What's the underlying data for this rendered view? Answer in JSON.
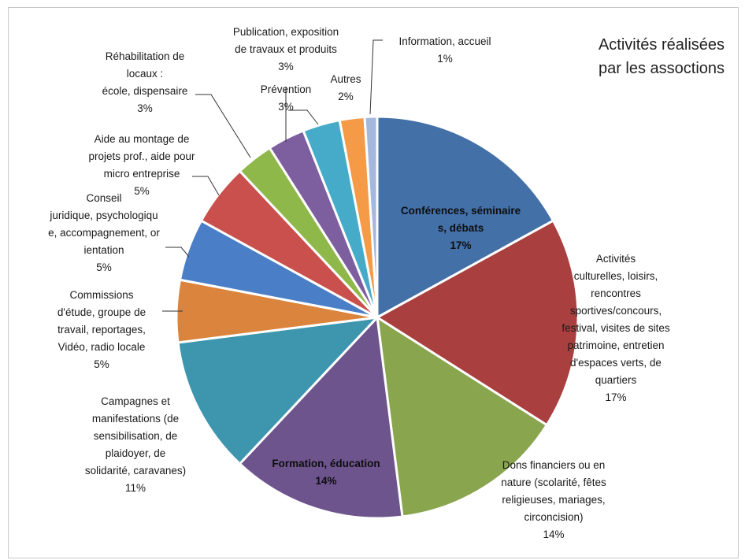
{
  "chart_data": {
    "type": "pie",
    "title": "Activités réalisées par les assoctions",
    "title_lines": [
      "Activités réalisées",
      "par les assoctions"
    ],
    "unit": "%",
    "slices": [
      {
        "label": "Conférences, séminaires, débats",
        "label_lines": [
          "Conférences, séminaire",
          "s, débats"
        ],
        "value": 17,
        "value_label": "17%",
        "color": "#4470A8"
      },
      {
        "label": "Activités culturelles, loisirs, rencontres sportives/concours, festival, visites de sites patrimoine, entretien d'espaces verts, de quartiers",
        "label_lines": [
          "Activités",
          "culturelles, loisirs,",
          "rencontres",
          "sportives/concours,",
          "festival,  visites de sites",
          "patrimoine, entretien",
          "d'espaces verts, de",
          "quartiers"
        ],
        "value": 17,
        "value_label": "17%",
        "color": "#A9403F"
      },
      {
        "label": "Dons financiers ou en nature (scolarité, fêtes religieuses, mariages, circoncision)",
        "label_lines": [
          "Dons financiers ou en",
          "nature (scolarité, fêtes",
          "religieuses, mariages,",
          "circoncision)"
        ],
        "value": 14,
        "value_label": "14%",
        "color": "#89A54E"
      },
      {
        "label": "Formation, éducation",
        "label_lines": [
          "Formation, éducation"
        ],
        "value": 14,
        "value_label": "14%",
        "color": "#6E548D"
      },
      {
        "label": "Campagnes et manifestations (de sensibilisation, de plaidoyer, de solidarité, caravanes)",
        "label_lines": [
          "Campagnes et",
          "manifestations   (de",
          "sensibilisation, de",
          "plaidoyer, de",
          "solidarité, caravanes)"
        ],
        "value": 11,
        "value_label": "11%",
        "color": "#3D96AE"
      },
      {
        "label": "Commissions d'étude, groupe de travail, reportages, Vidéo, radio locale",
        "label_lines": [
          "Commissions",
          "d'étude, groupe de",
          "travail, reportages,",
          "Vidéo, radio locale"
        ],
        "value": 5,
        "value_label": "5%",
        "color": "#DB843D"
      },
      {
        "label": "Conseil juridique, psychologique, accompagnement, orientation",
        "label_lines": [
          "Conseil",
          "juridique, psychologiqu",
          "e, accompagnement, or",
          "ientation"
        ],
        "value": 5,
        "value_label": "5%",
        "color": "#4A7EC6"
      },
      {
        "label": "Aide au montage de projets prof., aide pour micro entreprise",
        "label_lines": [
          "Aide au montage de",
          "projets prof., aide pour",
          "micro entreprise"
        ],
        "value": 5,
        "value_label": "5%",
        "color": "#C9504D"
      },
      {
        "label": "Réhabilitation de locaux : école, dispensaire",
        "label_lines": [
          "Réhabilitation de",
          "locaux :",
          "école, dispensaire"
        ],
        "value": 3,
        "value_label": "3%",
        "color": "#8FB84B"
      },
      {
        "label": "Publication, exposition de travaux et produits",
        "label_lines": [
          "Publication, exposition",
          "de travaux et produits"
        ],
        "value": 3,
        "value_label": "3%",
        "color": "#7D5FA0"
      },
      {
        "label": "Prévention",
        "label_lines": [
          "Prévention"
        ],
        "value": 3,
        "value_label": "3%",
        "color": "#46ABC8"
      },
      {
        "label": "Autres",
        "label_lines": [
          "Autres"
        ],
        "value": 2,
        "value_label": "2%",
        "color": "#F59A47"
      },
      {
        "label": "Information, accueil",
        "label_lines": [
          "Information, accueil"
        ],
        "value": 1,
        "value_label": "1%",
        "color": "#A4B8DD"
      }
    ]
  }
}
